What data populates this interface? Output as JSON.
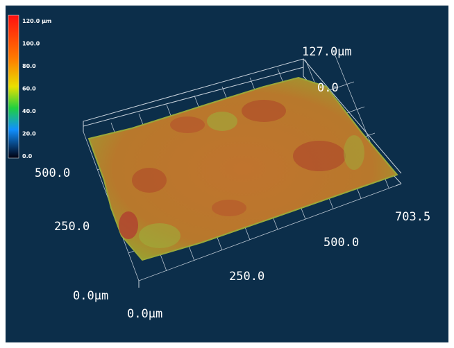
{
  "colorbar": {
    "labels": [
      "120.0 µm",
      "100.0",
      "80.0",
      "60.0",
      "40.0",
      "20.0",
      "0.0"
    ]
  },
  "axes": {
    "z_top": "127.0µm",
    "z_bottom": "0.0",
    "y_labels": [
      "500.0",
      "250.0",
      "0.0µm"
    ],
    "x_labels": [
      "0.0µm",
      "250.0",
      "500.0",
      "703.5"
    ]
  }
}
